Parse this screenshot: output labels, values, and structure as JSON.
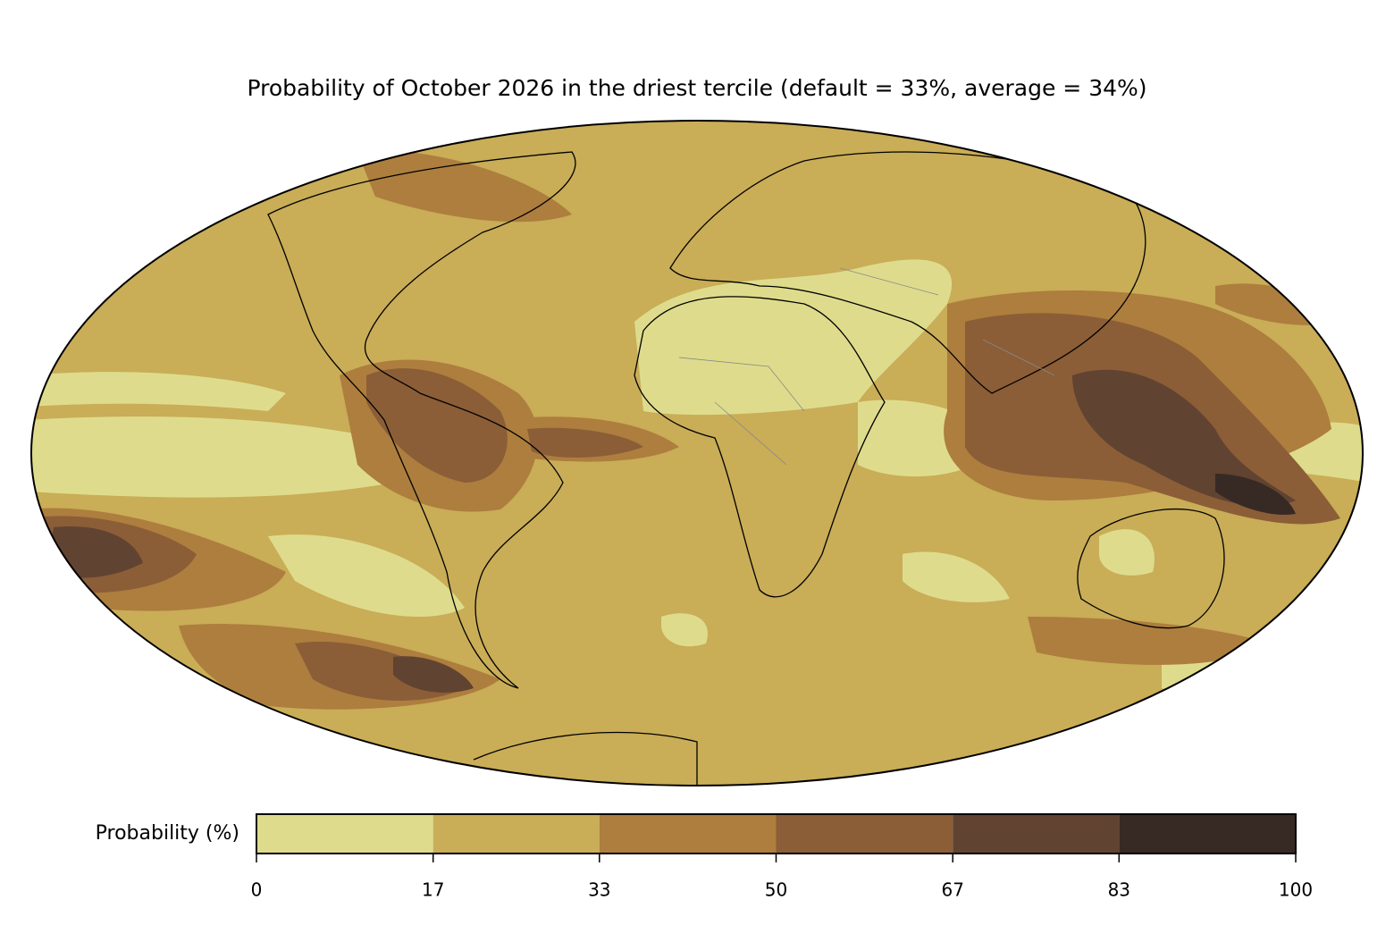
{
  "map": {
    "title": "Probability of October 2026 in the driest tercile (default = 33%, average = 34%)",
    "colorbar": {
      "label": "Probability (%)",
      "lim": [
        0,
        100
      ],
      "ticks": [
        0,
        17,
        33,
        50,
        67,
        83,
        100
      ],
      "colors": [
        "#dedc8c",
        "#c9ad57",
        "#ad7e3e",
        "#8b5e37",
        "#614331",
        "#372a25"
      ]
    }
  }
}
